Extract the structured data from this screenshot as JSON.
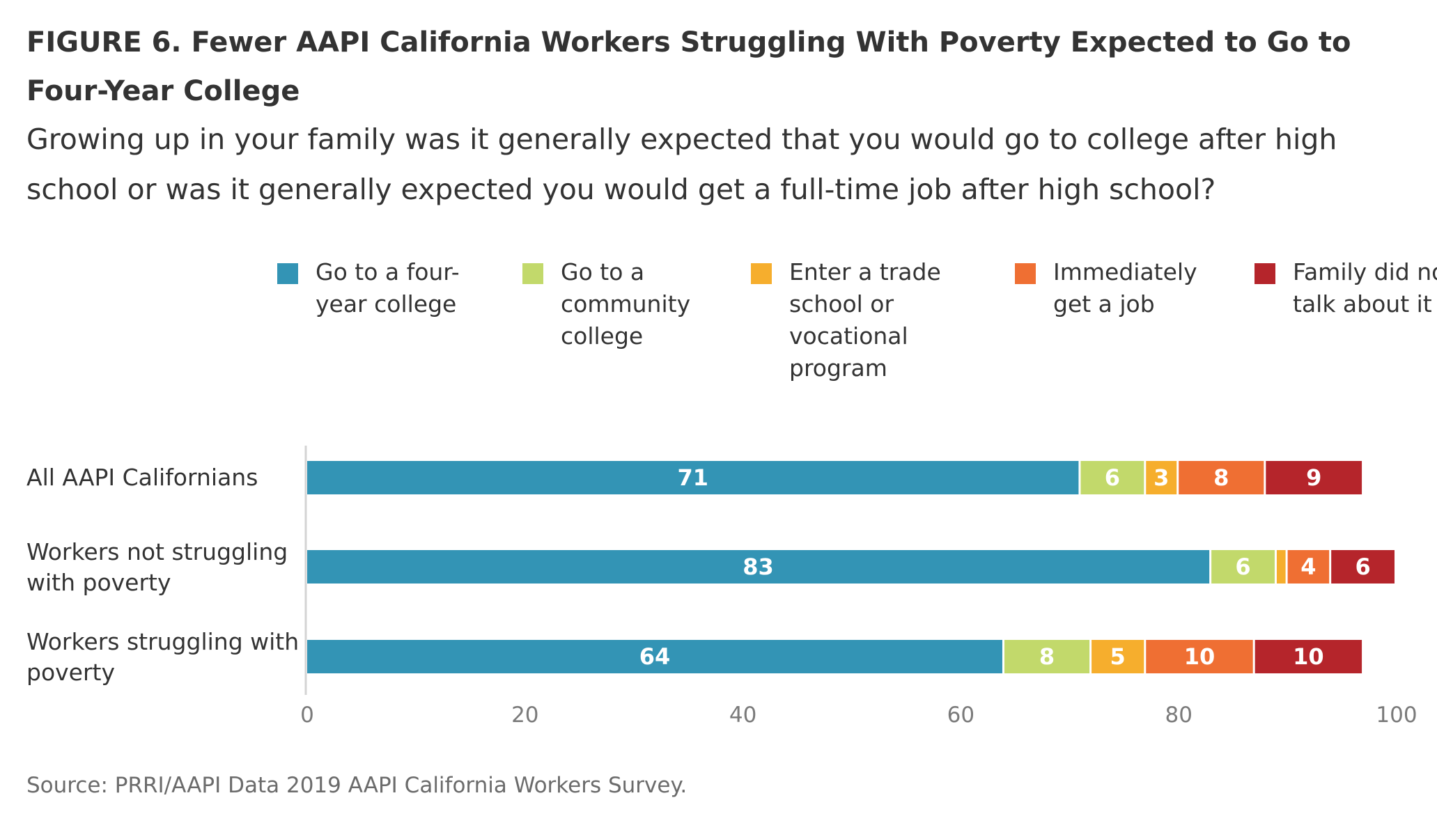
{
  "chart_data": {
    "type": "bar",
    "orientation": "horizontal",
    "stacked": true,
    "title": "FIGURE 6. Fewer AAPI California Workers Struggling With Poverty Expected to Go to Four-Year College",
    "subtitle": "Growing up in your family was it generally expected that you would go to college after high school or was it generally expected you would get a full-time job after high school?",
    "categories": [
      "All AAPI Californians",
      "Workers not struggling with poverty",
      "Workers struggling with poverty"
    ],
    "series": [
      {
        "name": "Go to a four-year college",
        "color": "#3394b5",
        "values": [
          71,
          83,
          64
        ],
        "labels": [
          "71",
          "83",
          "64"
        ]
      },
      {
        "name": "Go to a community college",
        "color": "#c2d96b",
        "values": [
          6,
          6,
          8
        ],
        "labels": [
          "6",
          "6",
          "8"
        ]
      },
      {
        "name": "Enter a trade school or vocational program",
        "color": "#f6ae2d",
        "values": [
          3,
          1,
          5
        ],
        "labels": [
          "3",
          "",
          "5"
        ]
      },
      {
        "name": "Immediately get a job",
        "color": "#ef6f33",
        "values": [
          8,
          4,
          10
        ],
        "labels": [
          "8",
          "4",
          "10"
        ]
      },
      {
        "name": "Family did not talk about it",
        "color": "#b5252b",
        "values": [
          9,
          6,
          10
        ],
        "labels": [
          "9",
          "6",
          "10"
        ]
      }
    ],
    "xlim": [
      0,
      100
    ],
    "xticks": [
      0,
      20,
      40,
      60,
      80,
      100
    ],
    "xtick_labels": [
      "0",
      "20",
      "40",
      "60",
      "80",
      "100"
    ],
    "legend_position": "top",
    "grid": false,
    "source": "Source: PRRI/AAPI Data 2019 AAPI California Workers Survey."
  }
}
